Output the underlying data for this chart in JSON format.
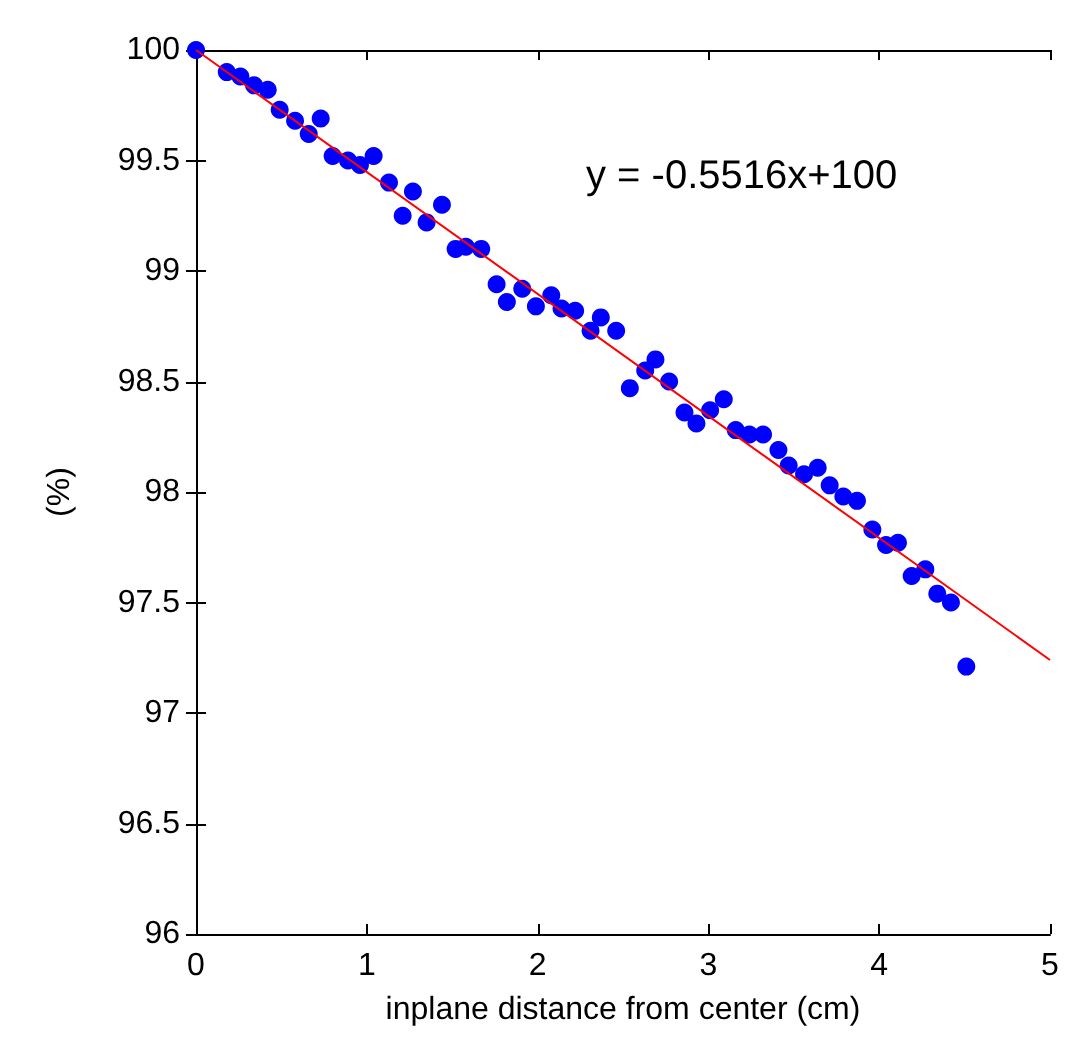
{
  "chart_data": {
    "type": "scatter",
    "xlabel": "inplane distance from center (cm)",
    "ylabel": "(%)",
    "annotations": [
      "y = -0.5516x+100"
    ],
    "xlim": [
      0,
      5
    ],
    "xticks": [
      0,
      1,
      2,
      3,
      4,
      5
    ],
    "ylim": [
      96,
      100
    ],
    "yticks": [
      96,
      96.5,
      97,
      97.5,
      98,
      98.5,
      99,
      99.5,
      100
    ],
    "grid": false,
    "marker": "circle",
    "series": [
      {
        "color": "#0000ff",
        "x": [
          0,
          0.18,
          0.26,
          0.34,
          0.42,
          0.49,
          0.58,
          0.66,
          0.73,
          0.8,
          0.89,
          0.96,
          1.04,
          1.13,
          1.21,
          1.27,
          1.35,
          1.44,
          1.52,
          1.58,
          1.67,
          1.76,
          1.82,
          1.91,
          1.99,
          2.08,
          2.14,
          2.22,
          2.31,
          2.37,
          2.46,
          2.54,
          2.63,
          2.69,
          2.77,
          2.86,
          2.93,
          3.01,
          3.09,
          3.16,
          3.24,
          3.32,
          3.41,
          3.47,
          3.56,
          3.64,
          3.71,
          3.79,
          3.87,
          3.96,
          4.04,
          4.11,
          4.19,
          4.27,
          4.34,
          4.42,
          4.51
        ],
        "values": [
          100,
          99.9,
          99.88,
          99.84,
          99.82,
          99.73,
          99.68,
          99.62,
          99.69,
          99.52,
          99.5,
          99.48,
          99.52,
          99.4,
          99.25,
          99.36,
          99.22,
          99.3,
          99.1,
          99.11,
          99.1,
          98.94,
          98.86,
          98.92,
          98.84,
          98.89,
          98.83,
          98.82,
          98.73,
          98.79,
          98.73,
          98.47,
          98.55,
          98.6,
          98.5,
          98.36,
          98.31,
          98.37,
          98.42,
          98.28,
          98.26,
          98.26,
          98.19,
          98.12,
          98.08,
          98.11,
          98.03,
          97.98,
          97.96,
          97.83,
          97.76,
          97.77,
          97.62,
          97.65,
          97.54,
          97.5,
          97.21
        ]
      },
      {
        "type": "line",
        "color": "#ff0000",
        "marker": "none",
        "line_style": "solid",
        "x": [
          0,
          5
        ],
        "values": [
          100,
          97.24
        ]
      }
    ]
  }
}
